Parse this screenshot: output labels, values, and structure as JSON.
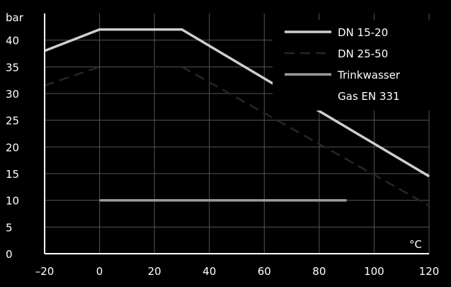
{
  "chart_data": {
    "type": "line",
    "ylabel": "bar",
    "xlabel": "°C",
    "xlim": [
      -20,
      120
    ],
    "ylim": [
      0,
      45
    ],
    "xticks": [
      -20,
      0,
      20,
      40,
      60,
      80,
      100,
      120
    ],
    "yticks": [
      0,
      5,
      10,
      15,
      20,
      25,
      30,
      35,
      40
    ],
    "grid": true,
    "legend_position": "top-right",
    "series": [
      {
        "name": "DN 15-20",
        "color": "#cfcfcf",
        "style": "solid",
        "points": [
          [
            -20,
            38
          ],
          [
            0,
            42
          ],
          [
            30,
            42
          ],
          [
            120,
            14.5
          ]
        ]
      },
      {
        "name": "DN 25-50",
        "color": "#262626",
        "style": "dashed",
        "points": [
          [
            -20,
            31.5
          ],
          [
            0,
            35
          ],
          [
            30,
            35
          ],
          [
            120,
            9
          ]
        ]
      },
      {
        "name": "Trinkwasser",
        "color": "#9a9a9a",
        "style": "solid",
        "points": [
          [
            0,
            10
          ],
          [
            90,
            10
          ]
        ]
      },
      {
        "name": "Gas EN 331",
        "color": "#000000",
        "style": "none",
        "points": []
      }
    ]
  }
}
